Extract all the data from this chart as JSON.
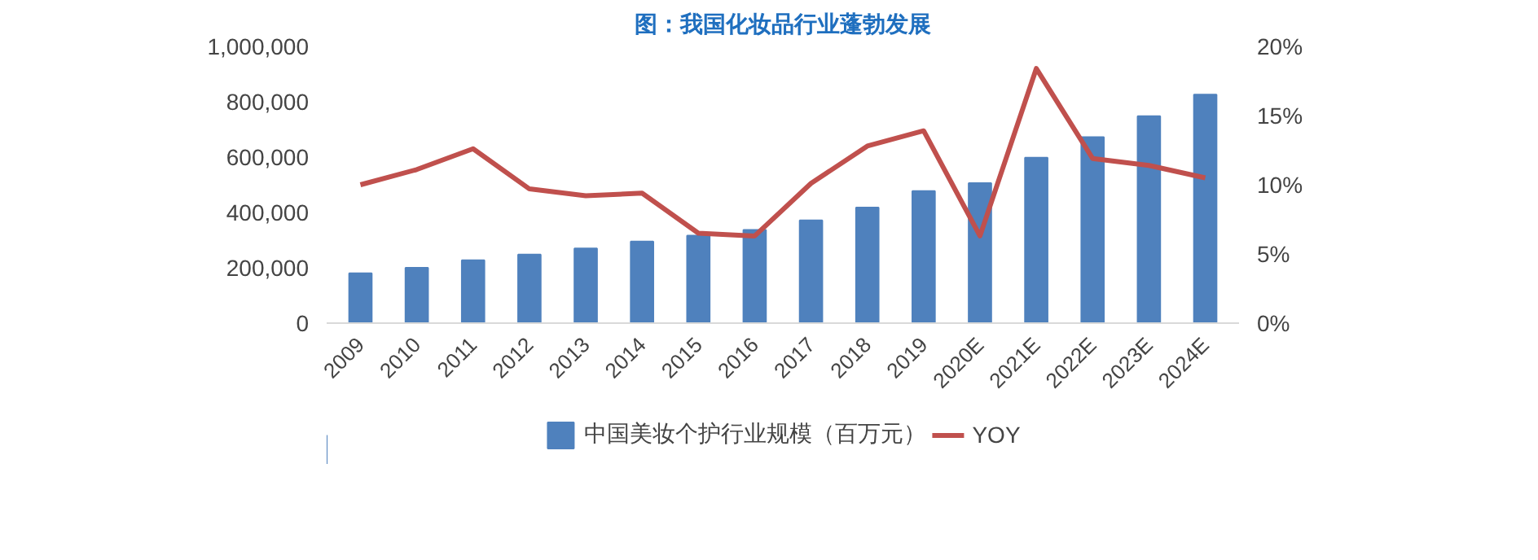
{
  "chart_data": {
    "type": "bar",
    "title": "图：我国化妆品行业蓬勃发展",
    "categories": [
      "2009",
      "2010",
      "2011",
      "2012",
      "2013",
      "2014",
      "2015",
      "2016",
      "2017",
      "2018",
      "2019",
      "2020E",
      "2021E",
      "2022E",
      "2023E",
      "2024E"
    ],
    "series": [
      {
        "name": "中国美妆个护行业规模（百万元）",
        "type": "bar",
        "color": "#4f81bd",
        "values": [
          180000,
          200000,
          227000,
          248000,
          270000,
          295000,
          316000,
          337000,
          371000,
          418000,
          477000,
          506000,
          598000,
          672000,
          748000,
          826000
        ]
      },
      {
        "name": "YOY",
        "type": "line",
        "axis": "y2",
        "color": "#c0504d",
        "values": [
          10.0,
          11.1,
          12.6,
          9.7,
          9.2,
          9.4,
          6.5,
          6.3,
          10.1,
          12.8,
          13.9,
          6.3,
          18.4,
          11.9,
          11.4,
          10.5
        ]
      }
    ],
    "ylim": [
      0,
      1000000
    ],
    "yticks": [
      {
        "value": 0,
        "label": "0"
      },
      {
        "value": 200000,
        "label": "200,000"
      },
      {
        "value": 400000,
        "label": "400,000"
      },
      {
        "value": 600000,
        "label": "600,000"
      },
      {
        "value": 800000,
        "label": "800,000"
      },
      {
        "value": 1000000,
        "label": "1,000,000"
      }
    ],
    "y2lim": [
      0,
      20
    ],
    "y2ticks": [
      {
        "value": 0,
        "label": "0%"
      },
      {
        "value": 5,
        "label": "5%"
      },
      {
        "value": 10,
        "label": "10%"
      },
      {
        "value": 15,
        "label": "15%"
      },
      {
        "value": 20,
        "label": "20%"
      }
    ],
    "grid": false,
    "legend": "bottom",
    "marker": "none",
    "line_style": "solid"
  }
}
